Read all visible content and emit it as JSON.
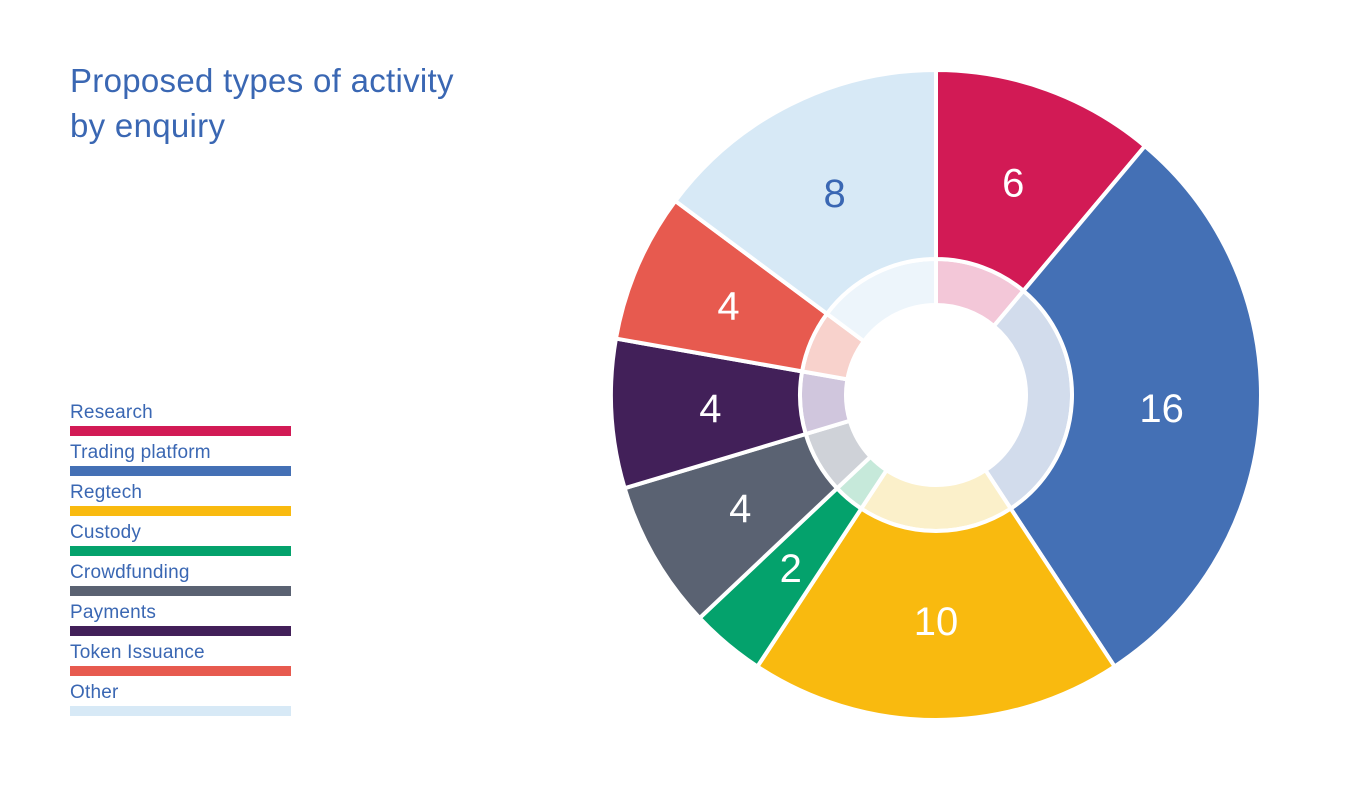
{
  "page": {
    "background": "#FFFFFF"
  },
  "title": {
    "text": "Proposed types of activity\nby enquiry",
    "color": "#3A67B3"
  },
  "legend": {
    "position": "left",
    "swatch_style": "horizontal-bar"
  },
  "chart_data": {
    "type": "pie",
    "variant": "donut-with-pastel-inner-ring",
    "title": "Proposed types of activity by enquiry",
    "categories": [
      "Research",
      "Trading platform",
      "Regtech",
      "Custody",
      "Crowdfunding",
      "Payments",
      "Token Issuance",
      "Other"
    ],
    "values": [
      6,
      16,
      10,
      2,
      4,
      4,
      4,
      8
    ],
    "total": 54,
    "colors": [
      "#D21A55",
      "#4470B5",
      "#F9BA0F",
      "#04A26C",
      "#5A6272",
      "#422059",
      "#E75A4F",
      "#D7E9F6"
    ],
    "inner_ring_colors": [
      "#F3C7D8",
      "#D2DCEC",
      "#FBF0CA",
      "#C6E9DA",
      "#CFD2D8",
      "#D0C6DD",
      "#F8D2CC",
      "#EDF5FB"
    ],
    "value_label_colors": [
      "#FFFFFF",
      "#FFFFFF",
      "#FFFFFF",
      "#FFFFFF",
      "#FFFFFF",
      "#FFFFFF",
      "#FFFFFF",
      "#3A67B3"
    ],
    "start_angle_deg": 0,
    "direction": "clockwise",
    "legend_position": "left",
    "gridlines": false,
    "background": "#FFFFFF"
  }
}
